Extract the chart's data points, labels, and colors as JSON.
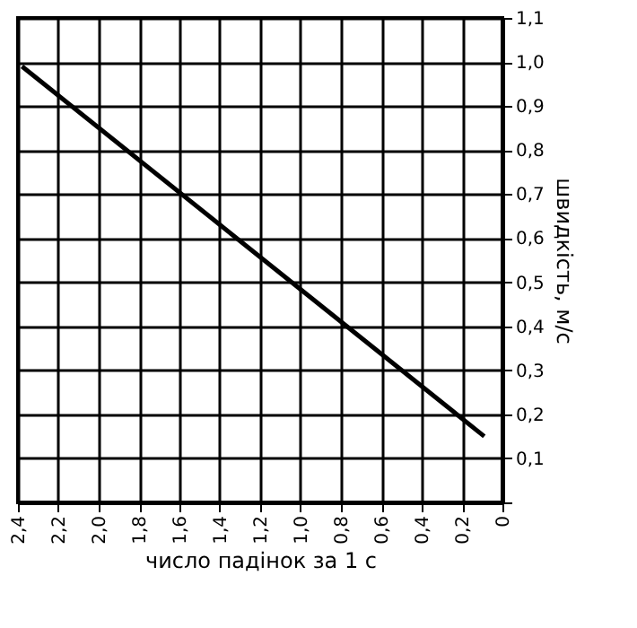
{
  "chart_data": {
    "type": "line",
    "xlabel": "число падінок за 1 с",
    "ylabel": "швидкість, м/с",
    "x": [
      2.38,
      0.09
    ],
    "series": [
      {
        "color": "#000000",
        "values": [
          0.99,
          0.15
        ]
      }
    ],
    "xlim": [
      2.4,
      0
    ],
    "xticks": [
      {
        "value": 2.4,
        "label": "2,4"
      },
      {
        "value": 2.2,
        "label": "2,2"
      },
      {
        "value": 2.0,
        "label": "2,0"
      },
      {
        "value": 1.8,
        "label": "1,8"
      },
      {
        "value": 1.6,
        "label": "1,6"
      },
      {
        "value": 1.4,
        "label": "1,4"
      },
      {
        "value": 1.2,
        "label": "1,2"
      },
      {
        "value": 1.0,
        "label": "1,0"
      },
      {
        "value": 0.8,
        "label": "0,8"
      },
      {
        "value": 0.6,
        "label": "0,6"
      },
      {
        "value": 0.4,
        "label": "0,4"
      },
      {
        "value": 0.2,
        "label": "0,2"
      },
      0
    ],
    "ylim": [
      0,
      1.1
    ],
    "yticks": [
      {
        "value": 0,
        "label": null
      },
      {
        "value": 0.1,
        "label": "0,1"
      },
      {
        "value": 0.2,
        "label": "0,2"
      },
      {
        "value": 0.3,
        "label": "0,3"
      },
      {
        "value": 0.4,
        "label": "0,4"
      },
      {
        "value": 0.5,
        "label": "0,5"
      },
      {
        "value": 0.6,
        "label": "0,6"
      },
      {
        "value": 0.7,
        "label": "0,7"
      },
      {
        "value": 0.8,
        "label": "0,8"
      },
      {
        "value": 0.9,
        "label": "0,9"
      },
      {
        "value": 1.0,
        "label": "1,0"
      },
      {
        "value": 1.1,
        "label": "1,1"
      }
    ],
    "grid": true,
    "marker": "none",
    "line_style": "solid"
  }
}
